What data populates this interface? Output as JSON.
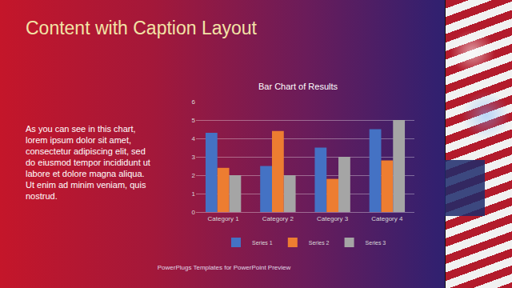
{
  "slide": {
    "title": "Content with Caption Layout",
    "caption": "As you can see in this chart, lorem ipsum dolor sit amet, consectetur adipiscing elit, sed do eiusmod tempor incididunt ut labore et dolore magna aliqua. Ut enim ad minim veniam, quis nostrud.",
    "footer": "PowerPlugs Templates for PowerPoint Preview"
  },
  "chart_data": {
    "type": "bar",
    "title": "Bar Chart of Results",
    "categories": [
      "Category 1",
      "Category 2",
      "Category 3",
      "Category 4"
    ],
    "series": [
      {
        "name": "Series 1",
        "color": "#4472c4",
        "values": [
          4.3,
          2.5,
          3.5,
          4.5
        ]
      },
      {
        "name": "Series 2",
        "color": "#ed7d31",
        "values": [
          2.4,
          4.4,
          1.8,
          2.8
        ]
      },
      {
        "name": "Series 3",
        "color": "#a5a5a5",
        "values": [
          2,
          2,
          3,
          5
        ]
      }
    ],
    "ylim": [
      0,
      6
    ],
    "yticks": [
      0,
      1,
      2,
      3,
      4,
      5,
      6
    ],
    "grid": true,
    "legend": "bottom"
  }
}
